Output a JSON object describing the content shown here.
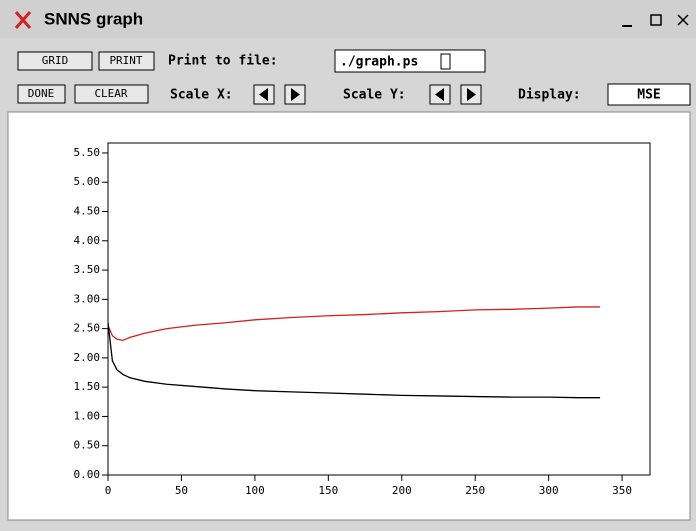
{
  "window": {
    "title": "SNNS graph"
  },
  "toolbar": {
    "grid": "GRID",
    "print": "PRINT",
    "print_label": "Print to file:",
    "file": "./graph.ps",
    "done": "DONE",
    "clear": "CLEAR",
    "scale_x": "Scale X:",
    "scale_y": "Scale Y:",
    "display_label": "Display:",
    "display": "MSE"
  },
  "chart_data": {
    "type": "line",
    "x": [
      0,
      3,
      6,
      10,
      15,
      25,
      40,
      60,
      80,
      100,
      125,
      150,
      175,
      200,
      225,
      250,
      275,
      300,
      320,
      335
    ],
    "series": [
      {
        "color": "#d42020",
        "values": [
          2.55,
          2.38,
          2.32,
          2.3,
          2.35,
          2.42,
          2.5,
          2.56,
          2.6,
          2.65,
          2.69,
          2.72,
          2.74,
          2.77,
          2.79,
          2.82,
          2.83,
          2.85,
          2.87,
          2.87
        ]
      },
      {
        "color": "#000000",
        "values": [
          2.6,
          1.95,
          1.8,
          1.72,
          1.66,
          1.6,
          1.55,
          1.51,
          1.47,
          1.44,
          1.42,
          1.4,
          1.38,
          1.36,
          1.35,
          1.34,
          1.33,
          1.33,
          1.32,
          1.32
        ]
      }
    ],
    "xlim": [
      0,
      369
    ],
    "ylim": [
      0,
      5.67
    ],
    "xticks": [
      0,
      50,
      100,
      150,
      200,
      250,
      300,
      350
    ],
    "yticks": [
      {
        "value": 0,
        "label": "0.00"
      },
      {
        "value": 0.5,
        "label": "0.50"
      },
      {
        "value": 1,
        "label": "1.00"
      },
      {
        "value": 1.5,
        "label": "1.50"
      },
      {
        "value": 2,
        "label": "2.00"
      },
      {
        "value": 2.5,
        "label": "2.50"
      },
      {
        "value": 3,
        "label": "3.00"
      },
      {
        "value": 3.5,
        "label": "3.50"
      },
      {
        "value": 4,
        "label": "4.00"
      },
      {
        "value": 4.5,
        "label": "4.50"
      },
      {
        "value": 5,
        "label": "5.00"
      },
      {
        "value": 5.5,
        "label": "5.50"
      }
    ],
    "grid": false
  }
}
